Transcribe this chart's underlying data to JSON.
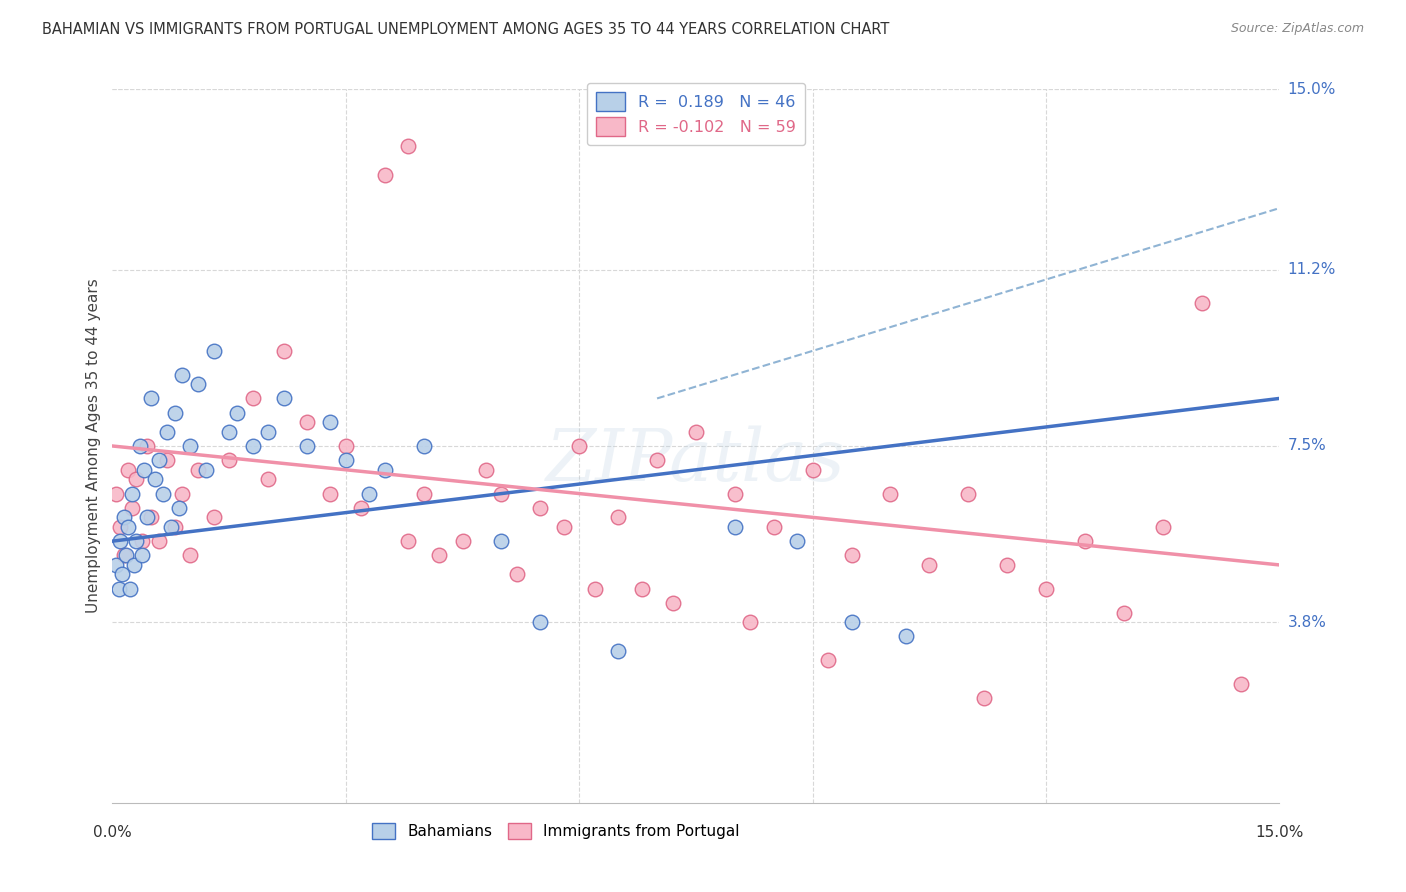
{
  "title": "BAHAMIAN VS IMMIGRANTS FROM PORTUGAL UNEMPLOYMENT AMONG AGES 35 TO 44 YEARS CORRELATION CHART",
  "source": "Source: ZipAtlas.com",
  "ylabel": "Unemployment Among Ages 35 to 44 years",
  "ytick_labels": [
    "15.0%",
    "11.2%",
    "7.5%",
    "3.8%"
  ],
  "ytick_values": [
    15.0,
    11.2,
    7.5,
    3.8
  ],
  "xmin": 0.0,
  "xmax": 15.0,
  "ymin": 0.0,
  "ymax": 15.0,
  "color_blue_fill": "#b8d0e8",
  "color_blue_edge": "#4472C4",
  "color_pink_fill": "#f8b8c8",
  "color_pink_edge": "#e06888",
  "line_blue": "#4472C4",
  "line_pink": "#f090a8",
  "line_dashed_color": "#90b4d4",
  "bahamians_x": [
    0.05,
    0.08,
    0.1,
    0.12,
    0.15,
    0.18,
    0.2,
    0.22,
    0.25,
    0.28,
    0.3,
    0.35,
    0.38,
    0.4,
    0.45,
    0.5,
    0.55,
    0.6,
    0.65,
    0.7,
    0.75,
    0.8,
    0.85,
    0.9,
    1.0,
    1.1,
    1.2,
    1.3,
    1.5,
    1.6,
    1.8,
    2.0,
    2.2,
    2.5,
    2.8,
    3.0,
    3.3,
    3.5,
    4.0,
    5.0,
    5.5,
    6.5,
    8.0,
    8.8,
    9.5,
    10.2
  ],
  "bahamians_y": [
    5.0,
    4.5,
    5.5,
    4.8,
    6.0,
    5.2,
    5.8,
    4.5,
    6.5,
    5.0,
    5.5,
    7.5,
    5.2,
    7.0,
    6.0,
    8.5,
    6.8,
    7.2,
    6.5,
    7.8,
    5.8,
    8.2,
    6.2,
    9.0,
    7.5,
    8.8,
    7.0,
    9.5,
    7.8,
    8.2,
    7.5,
    7.8,
    8.5,
    7.5,
    8.0,
    7.2,
    6.5,
    7.0,
    7.5,
    5.5,
    3.8,
    3.2,
    5.8,
    5.5,
    3.8,
    3.5
  ],
  "portugal_x": [
    0.05,
    0.1,
    0.15,
    0.2,
    0.25,
    0.3,
    0.38,
    0.45,
    0.5,
    0.6,
    0.7,
    0.8,
    0.9,
    1.0,
    1.1,
    1.3,
    1.5,
    1.8,
    2.0,
    2.2,
    2.5,
    2.8,
    3.0,
    3.2,
    3.5,
    3.8,
    4.0,
    4.5,
    4.8,
    5.0,
    5.5,
    5.8,
    6.0,
    6.5,
    7.0,
    7.5,
    8.0,
    8.5,
    9.0,
    9.5,
    10.0,
    10.5,
    11.0,
    11.5,
    12.0,
    12.5,
    13.0,
    13.5,
    14.0,
    14.5,
    3.8,
    4.2,
    5.2,
    6.2,
    6.8,
    7.2,
    8.2,
    9.2,
    11.2
  ],
  "portugal_y": [
    6.5,
    5.8,
    5.2,
    7.0,
    6.2,
    6.8,
    5.5,
    7.5,
    6.0,
    5.5,
    7.2,
    5.8,
    6.5,
    5.2,
    7.0,
    6.0,
    7.2,
    8.5,
    6.8,
    9.5,
    8.0,
    6.5,
    7.5,
    6.2,
    13.2,
    13.8,
    6.5,
    5.5,
    7.0,
    6.5,
    6.2,
    5.8,
    7.5,
    6.0,
    7.2,
    7.8,
    6.5,
    5.8,
    7.0,
    5.2,
    6.5,
    5.0,
    6.5,
    5.0,
    4.5,
    5.5,
    4.0,
    5.8,
    10.5,
    2.5,
    5.5,
    5.2,
    4.8,
    4.5,
    4.5,
    4.2,
    3.8,
    3.0,
    2.2
  ]
}
